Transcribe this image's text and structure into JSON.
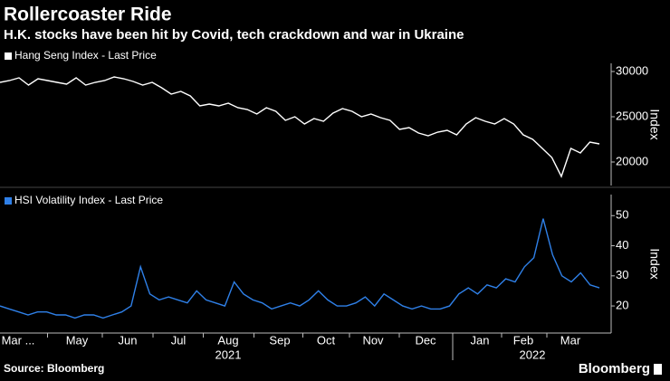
{
  "title": "Rollercoaster Ride",
  "subtitle": "H.K. stocks have been hit by Covid, tech crackdown and war in Ukraine",
  "source": "Source: Bloomberg",
  "brand": "Bloomberg",
  "x_axis": {
    "months": [
      "Mar ...",
      "May",
      "Jun",
      "Jul",
      "Aug",
      "Sep",
      "Oct",
      "Nov",
      "Dec",
      "Jan",
      "Feb",
      "Mar"
    ],
    "years": [
      "2021",
      "2022"
    ]
  },
  "chart_data": [
    {
      "type": "line",
      "ylabel": "Index",
      "ylim": [
        17400,
        30900
      ],
      "yticks": [
        20000,
        25000,
        30000
      ],
      "series": [
        {
          "name": "Hang Seng Index - Last Price",
          "color": "#ffffff",
          "values": [
            28800,
            29000,
            29300,
            28500,
            29200,
            29000,
            28800,
            28600,
            29300,
            28500,
            28800,
            29000,
            29400,
            29200,
            28900,
            28500,
            28800,
            28200,
            27500,
            27800,
            27300,
            26200,
            26400,
            26200,
            26500,
            26000,
            25800,
            25300,
            26000,
            25600,
            24600,
            25000,
            24200,
            24800,
            24500,
            25400,
            25900,
            25600,
            25000,
            25300,
            24900,
            24600,
            23600,
            23800,
            23200,
            22900,
            23300,
            23500,
            23000,
            24200,
            24900,
            24500,
            24200,
            24800,
            24200,
            23000,
            22500,
            21500,
            20500,
            18400,
            21500,
            21000,
            22200,
            22000
          ]
        }
      ]
    },
    {
      "type": "line",
      "ylabel": "Index",
      "ylim": [
        11,
        57
      ],
      "yticks": [
        20,
        30,
        40,
        50
      ],
      "series": [
        {
          "name": "HSI Volatility Index - Last Price",
          "color": "#2f80e8",
          "values": [
            20,
            19,
            18,
            17,
            18,
            18,
            17,
            17,
            16,
            17,
            17,
            16,
            17,
            18,
            20,
            33,
            24,
            22,
            23,
            22,
            21,
            25,
            22,
            21,
            20,
            28,
            24,
            22,
            21,
            19,
            20,
            21,
            20,
            22,
            25,
            22,
            20,
            20,
            21,
            23,
            20,
            24,
            22,
            20,
            19,
            20,
            19,
            19,
            20,
            24,
            26,
            24,
            27,
            26,
            29,
            28,
            33,
            36,
            49,
            37,
            30,
            28,
            31,
            27,
            26
          ]
        }
      ]
    }
  ]
}
